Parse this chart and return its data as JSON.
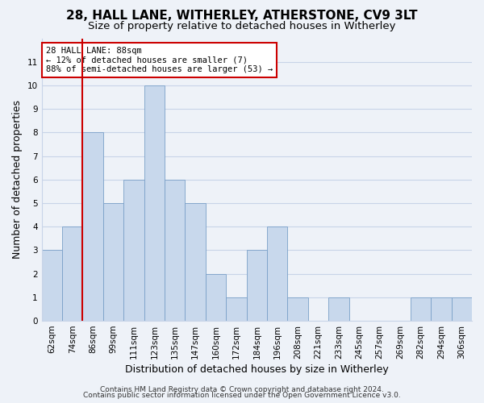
{
  "title": "28, HALL LANE, WITHERLEY, ATHERSTONE, CV9 3LT",
  "subtitle": "Size of property relative to detached houses in Witherley",
  "xlabel": "Distribution of detached houses by size in Witherley",
  "ylabel": "Number of detached properties",
  "bar_labels": [
    "62sqm",
    "74sqm",
    "86sqm",
    "99sqm",
    "111sqm",
    "123sqm",
    "135sqm",
    "147sqm",
    "160sqm",
    "172sqm",
    "184sqm",
    "196sqm",
    "208sqm",
    "221sqm",
    "233sqm",
    "245sqm",
    "257sqm",
    "269sqm",
    "282sqm",
    "294sqm",
    "306sqm"
  ],
  "bar_values": [
    3,
    4,
    8,
    5,
    6,
    10,
    6,
    5,
    2,
    1,
    3,
    4,
    1,
    0,
    1,
    0,
    0,
    0,
    1,
    1,
    1
  ],
  "bar_color": "#c8d8ec",
  "bar_edge_color": "#7aa0c8",
  "ylim": [
    0,
    12
  ],
  "yticks": [
    0,
    1,
    2,
    3,
    4,
    5,
    6,
    7,
    8,
    9,
    10,
    11
  ],
  "vline_x_index": 2,
  "vline_color": "#cc0000",
  "annotation_title": "28 HALL LANE: 88sqm",
  "annotation_line1": "← 12% of detached houses are smaller (7)",
  "annotation_line2": "88% of semi-detached houses are larger (53) →",
  "annotation_box_color": "#ffffff",
  "annotation_box_edge": "#cc0000",
  "footer1": "Contains HM Land Registry data © Crown copyright and database right 2024.",
  "footer2": "Contains public sector information licensed under the Open Government Licence v3.0.",
  "background_color": "#eef2f8",
  "grid_color": "#c8d4e8",
  "title_fontsize": 11,
  "subtitle_fontsize": 9.5,
  "axis_label_fontsize": 9,
  "tick_fontsize": 7.5,
  "footer_fontsize": 6.5
}
